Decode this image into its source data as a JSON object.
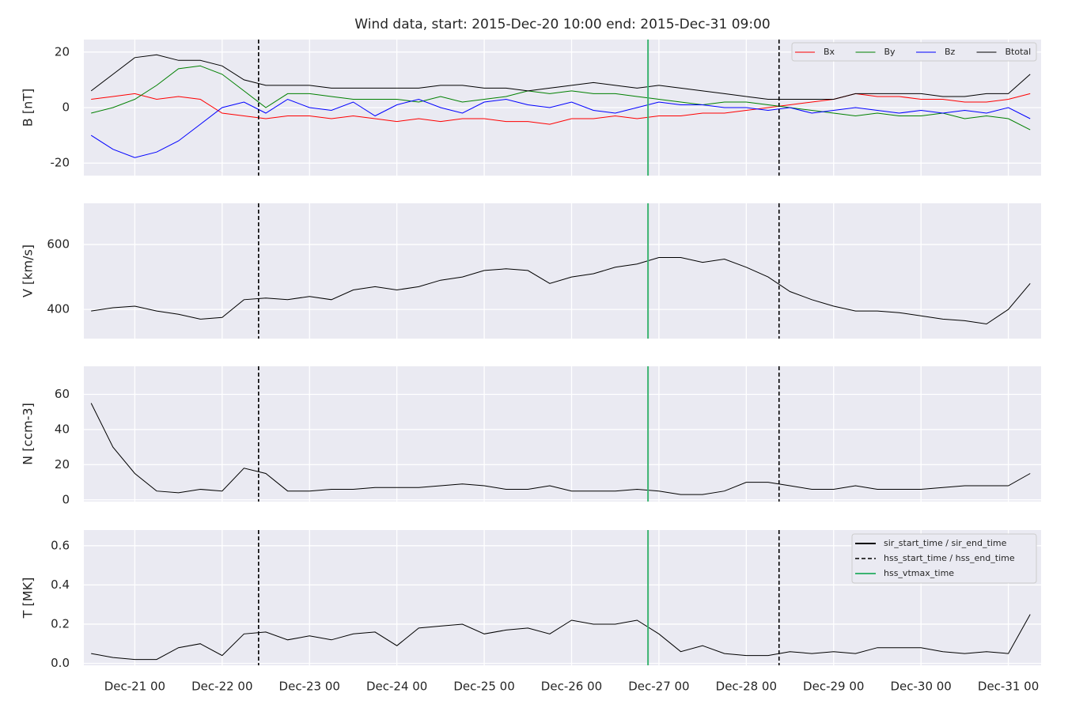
{
  "chart_data": [
    {
      "type": "line",
      "title": "Wind data, start: 2015-Dec-20 10:00  end: 2015-Dec-31 09:00",
      "ylabel": "B [nT]",
      "xlim": [
        "Dec-20 10",
        "Dec-31 09"
      ],
      "ylim": [
        -24.5,
        24.5
      ],
      "yticks": [
        -20,
        0,
        20
      ],
      "grid": true,
      "legend": "upper right",
      "x": [
        "Dec-20 12",
        "Dec-20 18",
        "Dec-21 00",
        "Dec-21 06",
        "Dec-21 12",
        "Dec-21 18",
        "Dec-22 00",
        "Dec-22 06",
        "Dec-22 12",
        "Dec-22 18",
        "Dec-23 00",
        "Dec-23 06",
        "Dec-23 12",
        "Dec-23 18",
        "Dec-24 00",
        "Dec-24 06",
        "Dec-24 12",
        "Dec-24 18",
        "Dec-25 00",
        "Dec-25 06",
        "Dec-25 12",
        "Dec-25 18",
        "Dec-26 00",
        "Dec-26 06",
        "Dec-26 12",
        "Dec-26 18",
        "Dec-27 00",
        "Dec-27 06",
        "Dec-27 12",
        "Dec-27 18",
        "Dec-28 00",
        "Dec-28 06",
        "Dec-28 12",
        "Dec-28 18",
        "Dec-29 00",
        "Dec-29 06",
        "Dec-29 12",
        "Dec-29 18",
        "Dec-30 00",
        "Dec-30 06",
        "Dec-30 12",
        "Dec-30 18",
        "Dec-31 00",
        "Dec-31 06"
      ],
      "series": [
        {
          "name": "Bx",
          "color": "#ff0000",
          "values": [
            3,
            4,
            5,
            3,
            4,
            3,
            -2,
            -3,
            -4,
            -3,
            -3,
            -4,
            -3,
            -4,
            -5,
            -4,
            -5,
            -4,
            -4,
            -5,
            -5,
            -6,
            -4,
            -4,
            -3,
            -4,
            -3,
            -3,
            -2,
            -2,
            -1,
            0,
            1,
            2,
            3,
            5,
            4,
            4,
            3,
            3,
            2,
            2,
            3,
            5
          ]
        },
        {
          "name": "By",
          "color": "#008000",
          "values": [
            -2,
            0,
            3,
            8,
            14,
            15,
            12,
            6,
            0,
            5,
            5,
            4,
            3,
            3,
            3,
            2,
            4,
            2,
            3,
            4,
            6,
            5,
            6,
            5,
            5,
            4,
            3,
            2,
            1,
            2,
            2,
            1,
            0,
            -1,
            -2,
            -3,
            -2,
            -3,
            -3,
            -2,
            -4,
            -3,
            -4,
            -8
          ]
        },
        {
          "name": "Bz",
          "color": "#0000ff",
          "values": [
            -10,
            -15,
            -18,
            -16,
            -12,
            -6,
            0,
            2,
            -2,
            3,
            0,
            -1,
            2,
            -3,
            1,
            3,
            0,
            -2,
            2,
            3,
            1,
            0,
            2,
            -1,
            -2,
            0,
            2,
            1,
            1,
            0,
            0,
            -1,
            0,
            -2,
            -1,
            0,
            -1,
            -2,
            -1,
            -2,
            -1,
            -2,
            0,
            -4
          ]
        },
        {
          "name": "Btotal",
          "color": "#000000",
          "values": [
            6,
            12,
            18,
            19,
            17,
            17,
            15,
            10,
            8,
            8,
            8,
            7,
            7,
            7,
            7,
            7,
            8,
            8,
            7,
            7,
            6,
            7,
            8,
            9,
            8,
            7,
            8,
            7,
            6,
            5,
            4,
            3,
            3,
            3,
            3,
            5,
            5,
            5,
            5,
            4,
            4,
            5,
            5,
            12
          ]
        }
      ],
      "vlines": [
        {
          "x": "Dec-22 10",
          "color": "#000000",
          "dash": true
        },
        {
          "x": "Dec-26 21",
          "color": "#3cb371",
          "dash": false
        },
        {
          "x": "Dec-28 09",
          "color": "#000000",
          "dash": true
        }
      ]
    },
    {
      "type": "line",
      "ylabel": "V [km/s]",
      "xlim": [
        "Dec-20 10",
        "Dec-31 09"
      ],
      "ylim": [
        310,
        727
      ],
      "yticks": [
        400,
        600
      ],
      "grid": true,
      "x": [
        "Dec-20 12",
        "Dec-20 18",
        "Dec-21 00",
        "Dec-21 06",
        "Dec-21 12",
        "Dec-21 18",
        "Dec-22 00",
        "Dec-22 06",
        "Dec-22 12",
        "Dec-22 18",
        "Dec-23 00",
        "Dec-23 06",
        "Dec-23 12",
        "Dec-23 18",
        "Dec-24 00",
        "Dec-24 06",
        "Dec-24 12",
        "Dec-24 18",
        "Dec-25 00",
        "Dec-25 06",
        "Dec-25 12",
        "Dec-25 18",
        "Dec-26 00",
        "Dec-26 06",
        "Dec-26 12",
        "Dec-26 18",
        "Dec-27 00",
        "Dec-27 06",
        "Dec-27 12",
        "Dec-27 18",
        "Dec-28 00",
        "Dec-28 06",
        "Dec-28 12",
        "Dec-28 18",
        "Dec-29 00",
        "Dec-29 06",
        "Dec-29 12",
        "Dec-29 18",
        "Dec-30 00",
        "Dec-30 06",
        "Dec-30 12",
        "Dec-30 18",
        "Dec-31 00",
        "Dec-31 06"
      ],
      "series": [
        {
          "color": "#000000",
          "values": [
            395,
            405,
            410,
            395,
            385,
            370,
            375,
            430,
            435,
            430,
            440,
            430,
            460,
            470,
            460,
            470,
            490,
            500,
            520,
            525,
            520,
            480,
            500,
            510,
            530,
            540,
            560,
            560,
            545,
            555,
            530,
            500,
            455,
            430,
            410,
            395,
            395,
            390,
            380,
            370,
            365,
            355,
            400,
            480
          ]
        }
      ],
      "vlines": [
        {
          "x": "Dec-22 10",
          "color": "#000000",
          "dash": true
        },
        {
          "x": "Dec-26 21",
          "color": "#3cb371",
          "dash": false
        },
        {
          "x": "Dec-28 09",
          "color": "#000000",
          "dash": true
        }
      ]
    },
    {
      "type": "line",
      "ylabel": "N [ccm-3]",
      "xlim": [
        "Dec-20 10",
        "Dec-31 09"
      ],
      "ylim": [
        -1,
        76
      ],
      "yticks": [
        0,
        20,
        40,
        60
      ],
      "grid": true,
      "x": [
        "Dec-20 12",
        "Dec-20 18",
        "Dec-21 00",
        "Dec-21 06",
        "Dec-21 12",
        "Dec-21 18",
        "Dec-22 00",
        "Dec-22 06",
        "Dec-22 12",
        "Dec-22 18",
        "Dec-23 00",
        "Dec-23 06",
        "Dec-23 12",
        "Dec-23 18",
        "Dec-24 00",
        "Dec-24 06",
        "Dec-24 12",
        "Dec-24 18",
        "Dec-25 00",
        "Dec-25 06",
        "Dec-25 12",
        "Dec-25 18",
        "Dec-26 00",
        "Dec-26 06",
        "Dec-26 12",
        "Dec-26 18",
        "Dec-27 00",
        "Dec-27 06",
        "Dec-27 12",
        "Dec-27 18",
        "Dec-28 00",
        "Dec-28 06",
        "Dec-28 12",
        "Dec-28 18",
        "Dec-29 00",
        "Dec-29 06",
        "Dec-29 12",
        "Dec-29 18",
        "Dec-30 00",
        "Dec-30 06",
        "Dec-30 12",
        "Dec-30 18",
        "Dec-31 00",
        "Dec-31 06"
      ],
      "series": [
        {
          "color": "#000000",
          "values": [
            55,
            30,
            15,
            5,
            4,
            6,
            5,
            18,
            15,
            5,
            5,
            6,
            6,
            7,
            7,
            7,
            8,
            9,
            8,
            6,
            6,
            8,
            5,
            5,
            5,
            6,
            5,
            3,
            3,
            5,
            10,
            10,
            8,
            6,
            6,
            8,
            6,
            6,
            6,
            7,
            8,
            8,
            8,
            15
          ]
        }
      ],
      "vlines": [
        {
          "x": "Dec-22 10",
          "color": "#000000",
          "dash": true
        },
        {
          "x": "Dec-26 21",
          "color": "#3cb371",
          "dash": false
        },
        {
          "x": "Dec-28 09",
          "color": "#000000",
          "dash": true
        }
      ]
    },
    {
      "type": "line",
      "ylabel": "T [MK]",
      "xlim": [
        "Dec-20 10",
        "Dec-31 09"
      ],
      "ylim": [
        -0.01,
        0.68
      ],
      "yticks": [
        {
          "value": 0,
          "label": "0.0"
        },
        0.2,
        0.4,
        0.6
      ],
      "grid": true,
      "legend": "upper right",
      "xticks": [
        "Dec-21 00",
        "Dec-22 00",
        "Dec-23 00",
        "Dec-24 00",
        "Dec-25 00",
        "Dec-26 00",
        "Dec-27 00",
        "Dec-28 00",
        "Dec-29 00",
        "Dec-30 00",
        "Dec-31 00"
      ],
      "x": [
        "Dec-20 12",
        "Dec-20 18",
        "Dec-21 00",
        "Dec-21 06",
        "Dec-21 12",
        "Dec-21 18",
        "Dec-22 00",
        "Dec-22 06",
        "Dec-22 12",
        "Dec-22 18",
        "Dec-23 00",
        "Dec-23 06",
        "Dec-23 12",
        "Dec-23 18",
        "Dec-24 00",
        "Dec-24 06",
        "Dec-24 12",
        "Dec-24 18",
        "Dec-25 00",
        "Dec-25 06",
        "Dec-25 12",
        "Dec-25 18",
        "Dec-26 00",
        "Dec-26 06",
        "Dec-26 12",
        "Dec-26 18",
        "Dec-27 00",
        "Dec-27 06",
        "Dec-27 12",
        "Dec-27 18",
        "Dec-28 00",
        "Dec-28 06",
        "Dec-28 12",
        "Dec-28 18",
        "Dec-29 00",
        "Dec-29 06",
        "Dec-29 12",
        "Dec-29 18",
        "Dec-30 00",
        "Dec-30 06",
        "Dec-30 12",
        "Dec-30 18",
        "Dec-31 00",
        "Dec-31 06"
      ],
      "series": [
        {
          "color": "#000000",
          "values": [
            0.05,
            0.03,
            0.02,
            0.02,
            0.08,
            0.1,
            0.04,
            0.15,
            0.16,
            0.12,
            0.14,
            0.12,
            0.15,
            0.16,
            0.09,
            0.18,
            0.19,
            0.2,
            0.15,
            0.17,
            0.18,
            0.15,
            0.22,
            0.2,
            0.2,
            0.22,
            0.15,
            0.06,
            0.09,
            0.05,
            0.04,
            0.04,
            0.06,
            0.05,
            0.06,
            0.05,
            0.08,
            0.08,
            0.08,
            0.06,
            0.05,
            0.06,
            0.05,
            0.25
          ]
        }
      ],
      "vlines": [
        {
          "x": "Dec-22 10",
          "color": "#000000",
          "dash": true
        },
        {
          "x": "Dec-26 21",
          "color": "#3cb371",
          "dash": false
        },
        {
          "x": "Dec-28 09",
          "color": "#000000",
          "dash": true
        }
      ],
      "vline_legend": [
        {
          "name": "sir_start_time / sir_end_time",
          "color": "#000000",
          "dash": false
        },
        {
          "name": "hss_start_time / hss_end_time",
          "color": "#000000",
          "dash": true
        },
        {
          "name": "hss_vtmax_time",
          "color": "#3cb371",
          "dash": false
        }
      ]
    }
  ]
}
